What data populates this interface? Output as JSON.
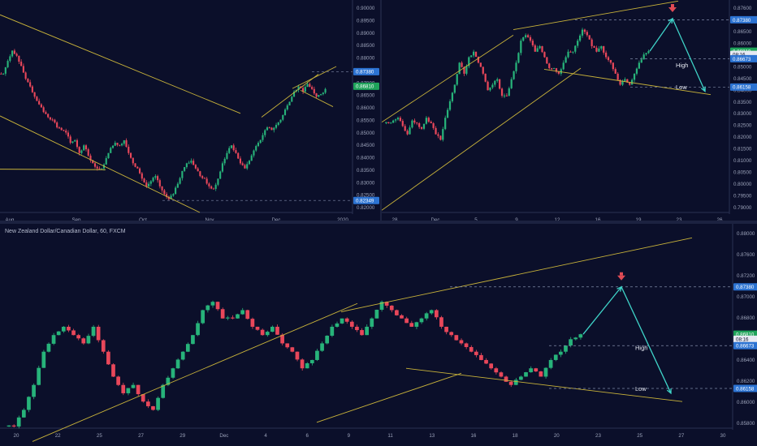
{
  "colors": {
    "background": "#0b0f2a",
    "up": "#27b37a",
    "down": "#e8475a",
    "trend": "#c9b33a",
    "projection": "#3fd4c8",
    "marker": "#e04b55",
    "dashed": "#7f8aa8",
    "blue_tag": "#2c73d2",
    "green_tag": "#1fa35a",
    "axis_text": "#9aa1b8"
  },
  "chart_data": [
    {
      "type": "candlestick",
      "name": "top-left",
      "x_ticks": [
        "Aug",
        "Sep",
        "Oct",
        "Nov",
        "Dec",
        "2020"
      ],
      "y_ticks": [
        "0.90000",
        "0.89500",
        "0.89000",
        "0.88500",
        "0.88000",
        "0.87500",
        "0.87000",
        "0.86500",
        "0.86000",
        "0.85500",
        "0.85000",
        "0.84500",
        "0.84000",
        "0.83500",
        "0.83000",
        "0.82500",
        "0.82000"
      ],
      "ylim": [
        0.8188,
        0.9005
      ],
      "tags": [
        {
          "label": "0.87380",
          "y": 0.8738,
          "color": "blue"
        },
        {
          "label": "0.86810",
          "y": 0.8681,
          "color": "green"
        },
        {
          "label": "0.82349",
          "y": 0.82349,
          "color": "blue"
        }
      ],
      "path_points": [
        0.873,
        0.878,
        0.882,
        0.88,
        0.876,
        0.871,
        0.868,
        0.864,
        0.861,
        0.858,
        0.856,
        0.855,
        0.852,
        0.851,
        0.85,
        0.846,
        0.847,
        0.842,
        0.845,
        0.841,
        0.838,
        0.836,
        0.836,
        0.84,
        0.844,
        0.846,
        0.845,
        0.847,
        0.842,
        0.838,
        0.836,
        0.832,
        0.829,
        0.831,
        0.833,
        0.829,
        0.826,
        0.824,
        0.826,
        0.83,
        0.835,
        0.838,
        0.839,
        0.836,
        0.833,
        0.832,
        0.829,
        0.828,
        0.832,
        0.838,
        0.842,
        0.845,
        0.842,
        0.838,
        0.836,
        0.839,
        0.843,
        0.846,
        0.849,
        0.852,
        0.851,
        0.853,
        0.855,
        0.859,
        0.862,
        0.866,
        0.868,
        0.866,
        0.869,
        0.867,
        0.864,
        0.865,
        0.867
      ]
    },
    {
      "type": "candlestick",
      "name": "top-right",
      "x_ticks": [
        "28",
        "Dec",
        "5",
        "9",
        "12",
        "16",
        "19",
        "23",
        "26"
      ],
      "y_ticks": [
        "0.87600",
        "0.87000",
        "0.86500",
        "0.86000",
        "0.85500",
        "0.85000",
        "0.84500",
        "0.84000",
        "0.83500",
        "0.83000",
        "0.82500",
        "0.82000",
        "0.81500",
        "0.81000",
        "0.80500",
        "0.80000",
        "0.79500",
        "0.79000"
      ],
      "y_ticks_right": [
        "0.87600",
        "0.87000",
        "0.86500",
        "0.86000",
        "0.85500",
        "0.85000",
        "0.84500",
        "0.84000"
      ],
      "ylim": [
        0.8388,
        0.8768
      ],
      "tags": [
        {
          "label": "0.87380",
          "y": 0.8738,
          "color": "blue"
        },
        {
          "label": "0.86810",
          "y": 0.8681,
          "color": "green"
        },
        {
          "label": "08:16",
          "y": 0.8675,
          "color": "white"
        },
        {
          "label": "0.86673",
          "y": 0.86673,
          "color": "blue"
        },
        {
          "label": "0.86158",
          "y": 0.86158,
          "color": "blue"
        }
      ],
      "annotations": [
        "High",
        "Low"
      ],
      "path_points": [
        0.855,
        0.8555,
        0.856,
        0.8545,
        0.853,
        0.8555,
        0.855,
        0.854,
        0.856,
        0.855,
        0.853,
        0.852,
        0.856,
        0.859,
        0.862,
        0.866,
        0.864,
        0.867,
        0.868,
        0.866,
        0.864,
        0.861,
        0.862,
        0.863,
        0.86,
        0.86,
        0.863,
        0.866,
        0.87,
        0.871,
        0.87,
        0.868,
        0.869,
        0.867,
        0.865,
        0.865,
        0.864,
        0.866,
        0.868,
        0.868,
        0.87,
        0.872,
        0.871,
        0.869,
        0.868,
        0.869,
        0.867,
        0.866,
        0.864,
        0.862,
        0.863,
        0.862,
        0.864,
        0.866,
        0.8675,
        0.8681
      ]
    },
    {
      "type": "candlestick",
      "name": "bottom",
      "title": "New Zealand Dollar/Canadian Dollar, 60, FXCM",
      "x_ticks": [
        "20",
        "22",
        "25",
        "27",
        "29",
        "Dec",
        "4",
        "6",
        "9",
        "11",
        "13",
        "16",
        "18",
        "20",
        "23",
        "25",
        "27",
        "30"
      ],
      "y_ticks": [
        "0.88000",
        "0.87600",
        "0.87200",
        "0.87000",
        "0.86800",
        "0.86600",
        "0.86400",
        "0.86200",
        "0.86000",
        "0.85800"
      ],
      "ylim": [
        0.8568,
        0.8808
      ],
      "tags": [
        {
          "label": "0.87380",
          "y": 0.8738,
          "color": "blue"
        },
        {
          "label": "0.86810",
          "y": 0.8681,
          "color": "green"
        },
        {
          "label": "08:16",
          "y": 0.8675,
          "color": "white"
        },
        {
          "label": "0.86673",
          "y": 0.86673,
          "color": "blue"
        },
        {
          "label": "0.86158",
          "y": 0.86158,
          "color": "blue"
        }
      ],
      "annotations": [
        "High",
        "Low"
      ],
      "path_points": [
        0.857,
        0.859,
        0.862,
        0.866,
        0.868,
        0.869,
        0.868,
        0.867,
        0.869,
        0.866,
        0.863,
        0.861,
        0.862,
        0.86,
        0.859,
        0.862,
        0.864,
        0.866,
        0.868,
        0.871,
        0.872,
        0.87,
        0.87,
        0.871,
        0.869,
        0.868,
        0.869,
        0.867,
        0.866,
        0.864,
        0.865,
        0.867,
        0.869,
        0.87,
        0.869,
        0.868,
        0.87,
        0.872,
        0.871,
        0.87,
        0.869,
        0.87,
        0.871,
        0.869,
        0.868,
        0.867,
        0.866,
        0.865,
        0.864,
        0.863,
        0.862,
        0.863,
        0.864,
        0.863,
        0.865,
        0.866,
        0.8675,
        0.8681
      ]
    }
  ]
}
